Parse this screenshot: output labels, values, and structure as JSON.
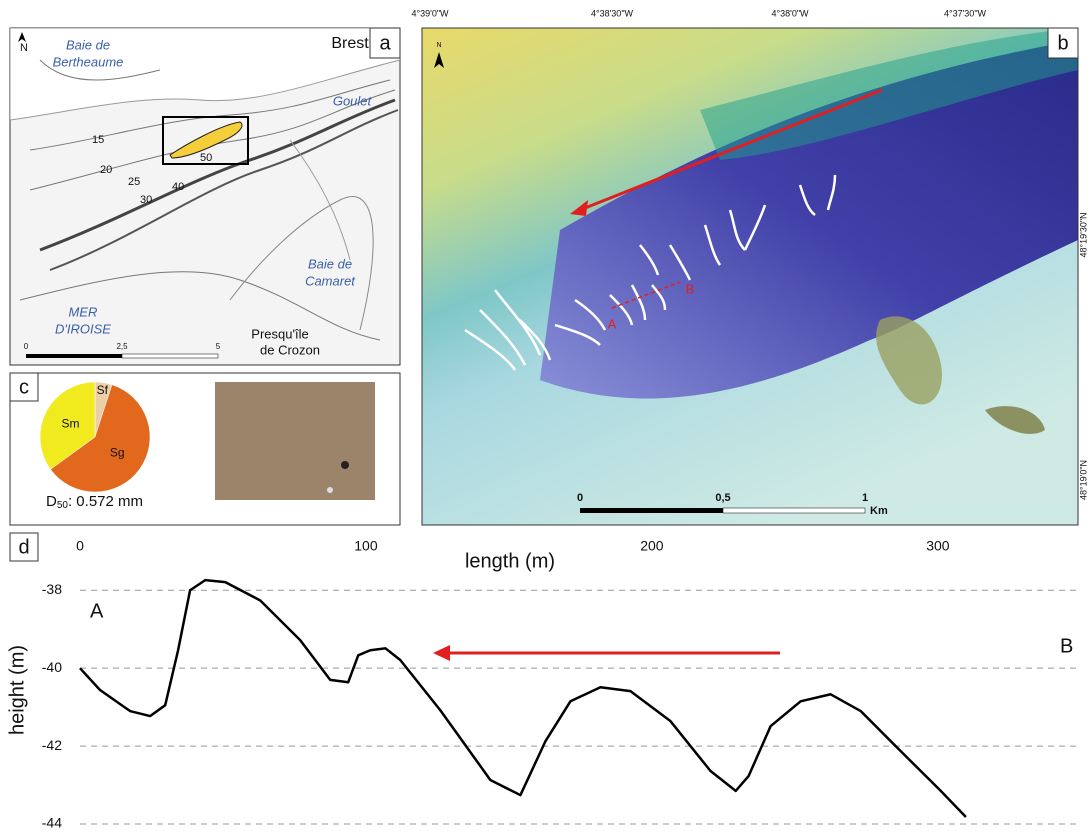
{
  "panel_a": {
    "label": "a",
    "city": "Brest",
    "bay_bertheaume": [
      "Baie de",
      "Bertheaume"
    ],
    "goulet": "Goulet",
    "sea": [
      "MER",
      "D'IROISE"
    ],
    "bay_camaret": [
      "Baie de",
      "Camaret"
    ],
    "peninsula": [
      "Presqu'île",
      "de Crozon"
    ],
    "north": "N",
    "depths": [
      "15",
      "20",
      "25",
      "30",
      "40",
      "50"
    ],
    "scale": [
      "0",
      "2,5",
      "5"
    ]
  },
  "panel_b": {
    "label": "b",
    "north": "N",
    "longitudes": [
      "4°39'0\"W",
      "4°38'30\"W",
      "4°38'0\"W",
      "4°37'30\"W"
    ],
    "latitudes": [
      "48°19'30\"N",
      "48°19'0\"N"
    ],
    "profile_start": "A",
    "profile_end": "B",
    "scale": [
      "0",
      "0,5",
      "1"
    ],
    "scale_unit": "Km"
  },
  "panel_c": {
    "label": "c",
    "d50": {
      "symbol": "D",
      "subscript": "50",
      "value": ": 0.572 mm"
    }
  },
  "panel_d": {
    "label": "d"
  },
  "chart_data": [
    {
      "type": "pie",
      "categories": [
        "Sf",
        "Sg",
        "Sm"
      ],
      "values": [
        5,
        60,
        35
      ],
      "colors": [
        "#eccfa6",
        "#e2681d",
        "#f1ea1f"
      ]
    },
    {
      "type": "line",
      "xlabel": "length (m)",
      "ylabel": "height (m)",
      "start_label": "A",
      "end_label": "B",
      "color": "#000000",
      "x": [
        0,
        7,
        17.5,
        24.5,
        29.8,
        34.3,
        38.5,
        43.8,
        50.8,
        63,
        77,
        87.5,
        93.8,
        97.3,
        101.5,
        106.8,
        112,
        126,
        143.5,
        154,
        162.8,
        171.5,
        182,
        192.5,
        206.5,
        220.5,
        229.3,
        233.8,
        241.5,
        252,
        262.5,
        273,
        287,
        301,
        309.8
      ],
      "values": [
        -40,
        -40.56,
        -41.1,
        -41.23,
        -40.95,
        -39.54,
        -38.0,
        -37.74,
        -37.79,
        -38.26,
        -39.28,
        -40.3,
        -40.36,
        -39.67,
        -39.54,
        -39.49,
        -39.79,
        -41.08,
        -42.87,
        -43.26,
        -41.87,
        -40.85,
        -40.49,
        -40.59,
        -41.36,
        -42.64,
        -43.15,
        -42.77,
        -41.49,
        -40.85,
        -40.67,
        -41.1,
        -42.13,
        -43.15,
        -43.82
      ],
      "xlim": [
        0,
        349
      ],
      "xticks": [
        0,
        100,
        200,
        300
      ],
      "ylim": [
        -44,
        -37.3
      ],
      "yticks": [
        -38,
        -40,
        -42,
        -44
      ],
      "grid": true
    }
  ]
}
